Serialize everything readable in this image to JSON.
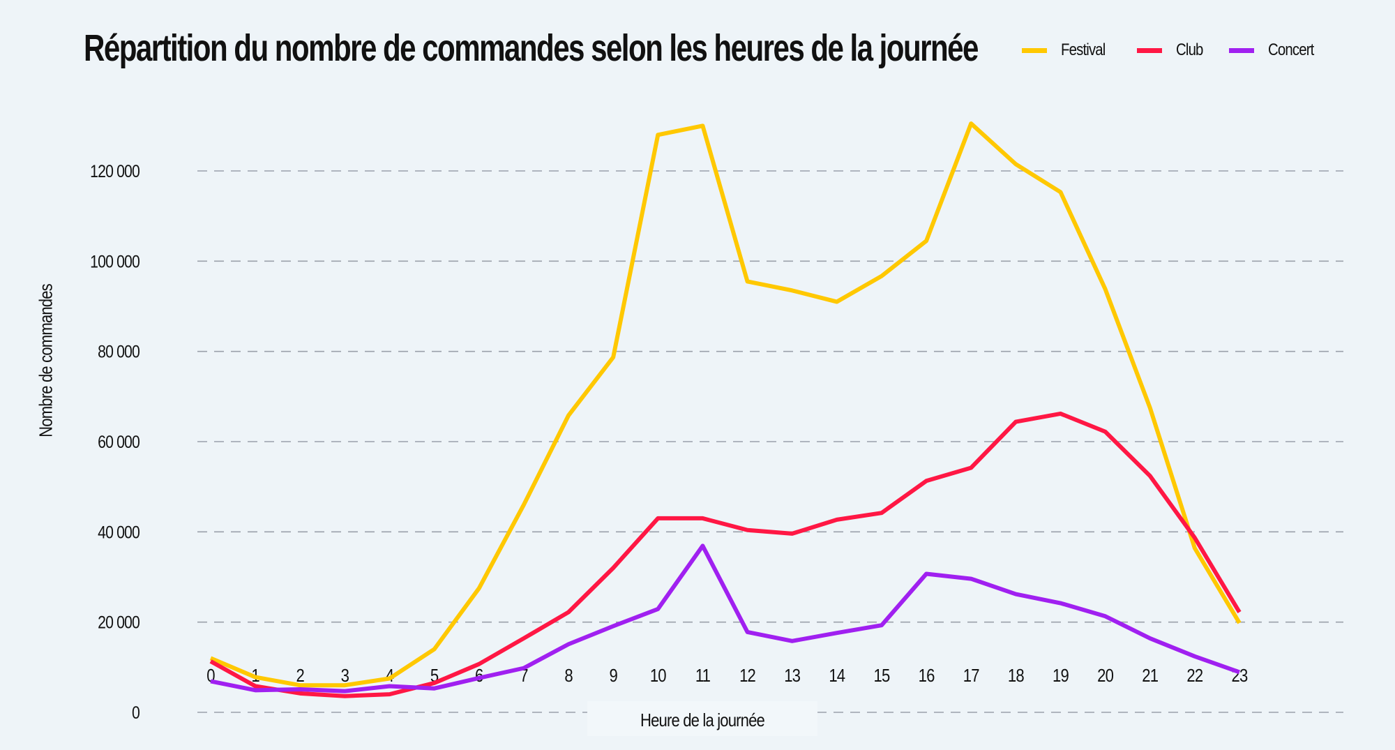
{
  "chart_data": {
    "type": "line",
    "title": "Répartition du nombre de commandes selon les heures de la journée",
    "xlabel": "Heure de la journée",
    "ylabel": "Nombre de commandes",
    "x": [
      0,
      1,
      2,
      3,
      4,
      5,
      6,
      7,
      8,
      9,
      10,
      11,
      12,
      13,
      14,
      15,
      16,
      17,
      18,
      19,
      20,
      21,
      22,
      23
    ],
    "x_tick_labels": [
      "0",
      "1",
      "2",
      "3",
      "4",
      "5",
      "6",
      "7",
      "8",
      "9",
      "10",
      "11",
      "12",
      "13",
      "14",
      "15",
      "16",
      "17",
      "18",
      "19",
      "20",
      "21",
      "22",
      "23"
    ],
    "y_ticks": [
      0,
      20000,
      40000,
      60000,
      80000,
      100000,
      120000
    ],
    "y_tick_labels": [
      "0",
      "20 000",
      "40 000",
      "60 000",
      "80 000",
      "100 000",
      "120 000"
    ],
    "ylim": [
      0,
      130000
    ],
    "grid": "horizontal dashed",
    "legend_position": "top-right",
    "series": [
      {
        "name": "Festival",
        "color": "#ffc800",
        "values": [
          12000,
          7800,
          6000,
          6000,
          7500,
          14000,
          27500,
          46000,
          65800,
          78700,
          128000,
          130000,
          95500,
          93500,
          91000,
          96700,
          104500,
          130500,
          121500,
          115300,
          93800,
          67500,
          36400,
          19800
        ]
      },
      {
        "name": "Club",
        "color": "#ff1744",
        "values": [
          11300,
          5800,
          4200,
          3600,
          4000,
          6500,
          10700,
          16400,
          22200,
          32000,
          43000,
          43000,
          40400,
          39600,
          42700,
          44200,
          51300,
          54200,
          64400,
          66200,
          62200,
          52400,
          38700,
          22200
        ]
      },
      {
        "name": "Concert",
        "color": "#a020f0",
        "values": [
          6900,
          4900,
          5100,
          4700,
          5800,
          5300,
          7600,
          9800,
          15100,
          19100,
          22900,
          36900,
          17800,
          15800,
          17600,
          19300,
          30700,
          29600,
          26200,
          24200,
          21300,
          16400,
          12400,
          8900
        ]
      }
    ]
  }
}
